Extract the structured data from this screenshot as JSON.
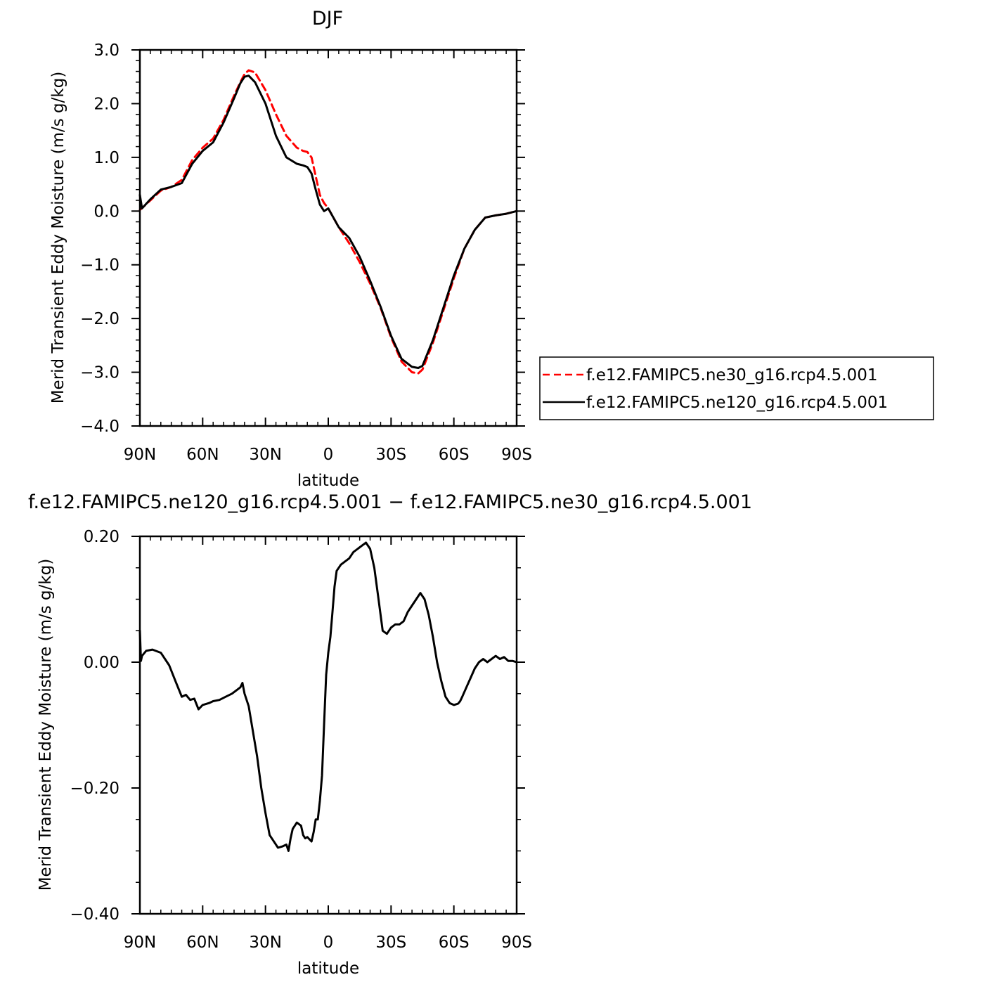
{
  "chart_data": [
    {
      "type": "line",
      "title": "DJF",
      "xlabel": "latitude",
      "ylabel": "Merid Transient Eddy Moisture (m/s g/kg)",
      "xlim": [
        90,
        -90
      ],
      "ylim": [
        -4.0,
        3.0
      ],
      "x_ticks": [
        90,
        60,
        30,
        0,
        -30,
        -60,
        -90
      ],
      "x_tick_labels": [
        "90N",
        "60N",
        "30N",
        "0",
        "30S",
        "60S",
        "90S"
      ],
      "y_ticks": [
        -4.0,
        -3.0,
        -2.0,
        -1.0,
        0.0,
        1.0,
        2.0,
        3.0
      ],
      "y_tick_labels": [
        "−4.0",
        "−3.0",
        "−2.0",
        "−1.0",
        "0.0",
        "1.0",
        "2.0",
        "3.0"
      ],
      "legend_position": "right",
      "series": [
        {
          "name": "f.e12.FAMIPC5.ne30_g16.rcp4.5.001",
          "color": "#ff0000",
          "style": "dashed",
          "x": [
            90,
            85,
            80,
            75,
            70,
            65,
            60,
            55,
            50,
            45,
            42,
            40,
            38,
            35,
            30,
            25,
            20,
            15,
            12,
            10,
            8,
            6,
            4,
            2,
            0,
            -5,
            -10,
            -15,
            -20,
            -25,
            -30,
            -35,
            -40,
            -43,
            -45,
            -50,
            -55,
            -60,
            -65,
            -70,
            -75,
            -80,
            -85,
            -90
          ],
          "y": [
            0.02,
            0.2,
            0.38,
            0.45,
            0.58,
            0.95,
            1.18,
            1.35,
            1.7,
            2.15,
            2.4,
            2.55,
            2.62,
            2.58,
            2.25,
            1.8,
            1.4,
            1.18,
            1.12,
            1.1,
            1.0,
            0.65,
            0.3,
            0.15,
            0.05,
            -0.3,
            -0.6,
            -0.95,
            -1.35,
            -1.8,
            -2.35,
            -2.8,
            -3.0,
            -3.02,
            -2.95,
            -2.45,
            -1.85,
            -1.25,
            -0.7,
            -0.35,
            -0.12,
            -0.08,
            -0.05,
            0.0
          ]
        },
        {
          "name": "f.e12.FAMIPC5.ne120_g16.rcp4.5.001",
          "color": "#000000",
          "style": "solid",
          "x": [
            90,
            89,
            85,
            80,
            75,
            70,
            65,
            60,
            55,
            50,
            45,
            42,
            40,
            38,
            35,
            30,
            25,
            20,
            15,
            12,
            10,
            8,
            6,
            4,
            2,
            0,
            -5,
            -10,
            -15,
            -20,
            -25,
            -30,
            -35,
            -40,
            -43,
            -45,
            -50,
            -55,
            -60,
            -65,
            -70,
            -75,
            -80,
            -85,
            -90
          ],
          "y": [
            0.3,
            0.05,
            0.22,
            0.4,
            0.45,
            0.52,
            0.88,
            1.12,
            1.28,
            1.65,
            2.1,
            2.38,
            2.5,
            2.52,
            2.4,
            2.0,
            1.4,
            1.0,
            0.88,
            0.85,
            0.82,
            0.7,
            0.4,
            0.12,
            0.0,
            0.05,
            -0.3,
            -0.5,
            -0.85,
            -1.3,
            -1.78,
            -2.32,
            -2.75,
            -2.9,
            -2.92,
            -2.88,
            -2.4,
            -1.8,
            -1.2,
            -0.7,
            -0.35,
            -0.12,
            -0.08,
            -0.05,
            0.0
          ]
        }
      ]
    },
    {
      "type": "line",
      "title": "f.e12.FAMIPC5.ne120_g16.rcp4.5.001 − f.e12.FAMIPC5.ne30_g16.rcp4.5.001",
      "xlabel": "latitude",
      "ylabel": "Merid Transient Eddy Moisture (m/s g/kg)",
      "xlim": [
        90,
        -90
      ],
      "ylim": [
        -0.4,
        0.2
      ],
      "x_ticks": [
        90,
        60,
        30,
        0,
        -30,
        -60,
        -90
      ],
      "x_tick_labels": [
        "90N",
        "60N",
        "30N",
        "0",
        "30S",
        "60S",
        "90S"
      ],
      "y_ticks": [
        -0.4,
        -0.2,
        0.0,
        0.2
      ],
      "y_tick_labels": [
        "−0.40",
        "−0.20",
        "0.00",
        "0.20"
      ],
      "series": [
        {
          "name": "",
          "color": "#000000",
          "style": "solid",
          "x": [
            90,
            89.5,
            89,
            87,
            84,
            80,
            76,
            73,
            70,
            68,
            66,
            64,
            62,
            60,
            57,
            55,
            52,
            49,
            46,
            44,
            42,
            41,
            40,
            38,
            36,
            34,
            32,
            30,
            28,
            26,
            24,
            22,
            20,
            19,
            18,
            17,
            15,
            13,
            12,
            11,
            10,
            8,
            7,
            6,
            5,
            4,
            3,
            2,
            1,
            0,
            -1,
            -2,
            -3,
            -4,
            -6,
            -8,
            -10,
            -12,
            -14,
            -16,
            -18,
            -20,
            -22,
            -24,
            -26,
            -28,
            -30,
            -32,
            -34,
            -36,
            -38,
            -40,
            -42,
            -44,
            -46,
            -48,
            -50,
            -52,
            -54,
            -56,
            -58,
            -60,
            -62,
            -63,
            -64,
            -66,
            -68,
            -70,
            -72,
            -74,
            -76,
            -78,
            -80,
            -82,
            -84,
            -86,
            -88,
            -90
          ],
          "y": [
            0.05,
            0.002,
            0.01,
            0.018,
            0.02,
            0.015,
            -0.005,
            -0.03,
            -0.055,
            -0.052,
            -0.06,
            -0.058,
            -0.075,
            -0.068,
            -0.065,
            -0.062,
            -0.06,
            -0.055,
            -0.05,
            -0.045,
            -0.04,
            -0.033,
            -0.05,
            -0.07,
            -0.11,
            -0.15,
            -0.2,
            -0.24,
            -0.275,
            -0.285,
            -0.295,
            -0.293,
            -0.29,
            -0.3,
            -0.28,
            -0.265,
            -0.255,
            -0.26,
            -0.275,
            -0.28,
            -0.278,
            -0.285,
            -0.27,
            -0.25,
            -0.25,
            -0.22,
            -0.18,
            -0.1,
            -0.02,
            0.015,
            0.04,
            0.08,
            0.12,
            0.145,
            0.155,
            0.16,
            0.165,
            0.175,
            0.18,
            0.185,
            0.19,
            0.18,
            0.15,
            0.1,
            0.05,
            0.045,
            0.055,
            0.06,
            0.06,
            0.065,
            0.08,
            0.09,
            0.1,
            0.11,
            0.1,
            0.075,
            0.04,
            0.0,
            -0.03,
            -0.055,
            -0.065,
            -0.068,
            -0.066,
            -0.062,
            -0.055,
            -0.04,
            -0.025,
            -0.01,
            0.0,
            0.005,
            0.0,
            0.005,
            0.01,
            0.005,
            0.008,
            0.002,
            0.002,
            0.0
          ]
        }
      ]
    }
  ]
}
